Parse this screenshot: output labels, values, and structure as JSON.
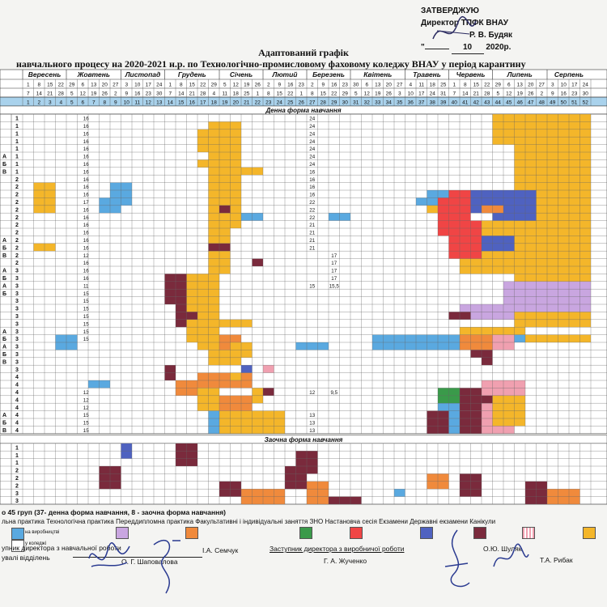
{
  "approval": {
    "line1": "ЗАТВЕРДЖУЮ",
    "line2": "Директор ТПФК ВНАУ",
    "line3": "Р. В. Будяк",
    "line4_day": "",
    "line4_month": "10",
    "line4_year": "2020р."
  },
  "title": {
    "line1": "Адаптований графік",
    "line2": "навчального процесу  на 2020-2021 н.р. по Технологічно-промисловому фаховому коледжу ВНАУ у період карантину"
  },
  "header": {
    "months": [
      "Вересень",
      "Жовтень",
      "Листопад",
      "Грудень",
      "Січень",
      "Лютий",
      "Березень",
      "Квітень",
      "Травень",
      "Червень",
      "Липень",
      "Серпень"
    ],
    "month_spans": [
      4,
      5,
      4,
      5,
      4,
      4,
      4,
      5,
      4,
      4,
      5,
      4
    ],
    "row1": [
      1,
      8,
      15,
      22,
      29,
      6,
      13,
      20,
      27,
      3,
      10,
      17,
      24,
      1,
      8,
      15,
      22,
      29,
      5,
      12,
      19,
      26,
      2,
      9,
      16,
      23,
      2,
      9,
      16,
      23,
      30,
      6,
      13,
      20,
      27,
      4,
      11,
      18,
      25,
      1,
      8,
      15,
      22,
      29,
      6,
      13,
      20,
      27,
      3,
      10,
      17,
      24
    ],
    "row2": [
      7,
      14,
      21,
      28,
      5,
      12,
      19,
      26,
      2,
      9,
      16,
      23,
      30,
      7,
      14,
      21,
      28,
      4,
      11,
      18,
      25,
      1,
      8,
      15,
      22,
      1,
      8,
      15,
      22,
      29,
      5,
      12,
      19,
      26,
      3,
      10,
      17,
      24,
      31,
      7,
      14,
      21,
      28,
      5,
      12,
      19,
      26,
      2,
      9,
      16,
      23,
      30
    ],
    "section_full": "Денна форма навчання",
    "section_part": "Заочна форма навчання"
  },
  "left_labels": {
    "courses": [
      "1",
      "1",
      "1",
      "1",
      "1",
      "1",
      "1",
      "1",
      "2",
      "2",
      "2",
      "2",
      "2",
      "2",
      "2",
      "2",
      "2",
      "2",
      "2",
      "2",
      "3",
      "3",
      "3",
      "3",
      "3",
      "3",
      "3",
      "3",
      "3",
      "3",
      "3",
      "3",
      "3",
      "3",
      "4",
      "4",
      "4",
      "4",
      "4",
      "4",
      "4",
      "4"
    ],
    "letters": [
      "",
      "",
      "",
      "",
      "",
      "A",
      "Б",
      "B",
      "",
      "",
      "",
      "",
      "",
      "",
      "",
      "",
      "A",
      "Б",
      "B",
      "",
      "A",
      "Б",
      "A",
      "Б",
      "",
      "",
      "",
      "",
      "A",
      "Б",
      "A",
      "Б",
      "B",
      "",
      "",
      "",
      "",
      "",
      "",
      "A",
      "Б",
      "B"
    ],
    "weeks_col1": [
      "16",
      "16",
      "16",
      "16",
      "16",
      "16",
      "16",
      "16",
      "16",
      "16",
      "16",
      "17",
      "16",
      "16",
      "16",
      "16",
      "16",
      "16",
      "12",
      "16",
      "16",
      "16",
      "11",
      "15",
      "15",
      "15",
      "15",
      "15",
      "15",
      "15",
      "12",
      "12",
      "12",
      "15",
      "15",
      "15"
    ],
    "weeks_col2": [
      "24",
      "24",
      "24",
      "24",
      "24",
      "24",
      "24",
      "16",
      "16",
      "16",
      "16",
      "22",
      "22",
      "22",
      "21",
      "21",
      "21",
      "21",
      "",
      "",
      "",
      "",
      "15",
      "",
      "",
      "",
      "",
      "",
      "",
      "",
      "12",
      "",
      "",
      "13",
      "13",
      "13"
    ],
    "weeks_col3": [
      "",
      "",
      "",
      "",
      "",
      "",
      "",
      "",
      "",
      "",
      "",
      "",
      "",
      "",
      "",
      "",
      "",
      "",
      "17",
      "17",
      "17",
      "17",
      "15,5",
      "",
      "",
      "",
      "",
      "",
      "",
      "",
      "9,5",
      "",
      "",
      "",
      "",
      ""
    ],
    "part_courses": [
      "1",
      "1",
      "1",
      "2",
      "2",
      "2",
      "3",
      "3"
    ]
  },
  "summary_text": "о 45 груп (37- денна форма навчання, 8 - заочна форма навчання)",
  "legend": {
    "labels_text": "льна практика Технологічна практика Переддипломна практика Факультативні і індивідуальні заняття  ЗНО   Настановча сесія   Екзамени Державні екзамени Канікули",
    "in_production": "на виробництві",
    "in_college": "у коледжі",
    "colors": {
      "blue": "#5aa9e0",
      "lilac": "#c9a6e0",
      "orange": "#f08a3c",
      "green": "#3a9a4a",
      "red": "#f04545",
      "darkblue": "#4f62c0",
      "maroon": "#7a2a3c",
      "pink_hatch": "#f0a0b0",
      "yellow": "#f4b62a"
    }
  },
  "signatures": {
    "left_title": "упник директора з навчальної роботи",
    "left_dept": "увалі відділень",
    "left_name1": "О. Г. Шаповалова",
    "left_name2": "І.А. Семчук",
    "right_title": "Заступник директора з виробничої роботи",
    "right_name1": "Г. А. Жученко",
    "right_name2": "О.Ю. Шуляк",
    "right_name3": "Т.А. Рибак"
  }
}
